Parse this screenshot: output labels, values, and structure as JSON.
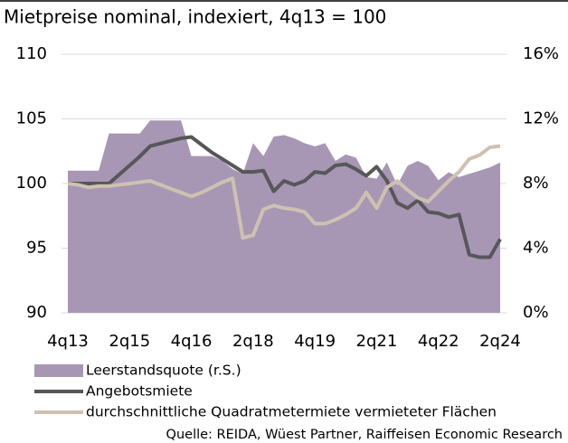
{
  "chart_data": {
    "type": "area-line",
    "title": "Mietpreise nominal, indexiert, 4q13 = 100",
    "source": "Quelle: REIDA, Wüest Partner, Raiffeisen Economic Research",
    "categories": [
      "4q13",
      null,
      null,
      null,
      null,
      null,
      "2q15",
      null,
      null,
      null,
      null,
      null,
      "4q16",
      null,
      null,
      null,
      null,
      null,
      "2q18",
      null,
      null,
      null,
      null,
      null,
      "4q19",
      null,
      null,
      null,
      null,
      null,
      "2q21",
      null,
      null,
      null,
      null,
      null,
      "4q22",
      null,
      null,
      null,
      null,
      null,
      "2q24"
    ],
    "series": [
      {
        "name": "Leerstandsquote (r.S.)",
        "color": "#a797b4",
        "axis": "y2",
        "style": "area",
        "values": [
          8.8,
          8.8,
          8.8,
          8.8,
          11.1,
          11.1,
          11.1,
          11.1,
          11.9,
          11.9,
          11.9,
          11.9,
          9.7,
          9.7,
          9.7,
          9.4,
          8.9,
          8.6,
          10.5,
          9.7,
          10.9,
          11.0,
          10.8,
          10.5,
          10.3,
          10.5,
          9.4,
          9.8,
          9.6,
          8.4,
          8.3,
          9.3,
          7.9,
          9.1,
          9.4,
          9.1,
          8.2,
          8.7,
          8.4,
          8.6,
          8.8,
          9.0,
          9.3
        ]
      },
      {
        "name": "Angebotsmiete",
        "color": "#57575a",
        "style": "line",
        "values": [
          100,
          100,
          100,
          100,
          100,
          100.7,
          101.4,
          102.1,
          102.9,
          103.1,
          103.3,
          103.5,
          103.6,
          103.0,
          102.4,
          101.9,
          101.4,
          100.9,
          100.9,
          101.0,
          99.4,
          100.2,
          99.9,
          100.2,
          100.9,
          100.8,
          101.4,
          101.5,
          101.1,
          100.6,
          101.3,
          100.2,
          98.5,
          98.1,
          98.7,
          97.8,
          97.7,
          97.4,
          97.6,
          94.5,
          94.3,
          94.3,
          95.7
        ]
      },
      {
        "name": "durchschnittliche Quadratmetermiete vermieteter Flächen",
        "color": "#cfc1b0",
        "style": "line",
        "values": [
          100,
          99.9,
          99.7,
          99.8,
          99.8,
          99.9,
          100,
          100.1,
          100.2,
          99.9,
          99.6,
          99.3,
          99.0,
          99.3,
          99.7,
          100.1,
          100.4,
          95.8,
          96.0,
          98.0,
          98.3,
          98.1,
          98.0,
          97.8,
          96.9,
          96.9,
          97.2,
          97.6,
          98.1,
          99.3,
          98.1,
          99.7,
          100.2,
          99.5,
          98.9,
          98.6,
          99.4,
          100.2,
          100.9,
          101.9,
          102.2,
          102.8,
          102.9
        ]
      }
    ],
    "ylim": [
      90,
      110
    ],
    "yticks": [
      90,
      95,
      100,
      105,
      110
    ],
    "y2lim": [
      0,
      16
    ],
    "y2ticks": [
      {
        "value": 0,
        "label": "0%"
      },
      {
        "value": 4,
        "label": "4%"
      },
      {
        "value": 8,
        "label": "8%"
      },
      {
        "value": 12,
        "label": "12%"
      },
      {
        "value": 16,
        "label": "16%"
      }
    ],
    "grid": true
  }
}
